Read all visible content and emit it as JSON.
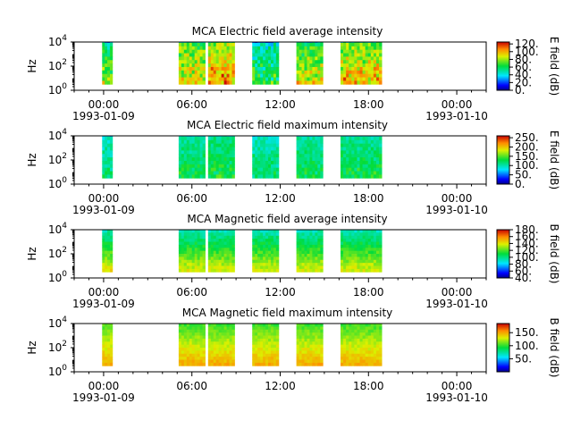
{
  "chart_data": [
    {
      "type": "heatmap",
      "title": "MCA  Electric field average intensity",
      "ylabel": "Hz",
      "colorbar_label": "E field (dB)",
      "colorbar_ticks": [
        "0.",
        "20.",
        "40.",
        "60.",
        "80.",
        "100.",
        "120."
      ],
      "colorbar_range": [
        0,
        125
      ],
      "ylim_exp": [
        0,
        4
      ],
      "yticks": [
        "0",
        "2",
        "4"
      ],
      "xticks": [
        {
          "time": "00:00",
          "date": "1993-01-09"
        },
        {
          "time": "06:00",
          "date": ""
        },
        {
          "time": "12:00",
          "date": ""
        },
        {
          "time": "18:00",
          "date": ""
        },
        {
          "time": "00:00",
          "date": "1993-01-10"
        }
      ],
      "x_range_hours": [
        -2,
        26
      ],
      "data_intervals_hours": [
        [
          -0.1,
          0.6
        ],
        [
          5.1,
          6.9
        ],
        [
          7.1,
          8.9
        ],
        [
          10.1,
          11.9
        ],
        [
          13.1,
          14.9
        ],
        [
          16.1,
          18.9
        ]
      ],
      "intensity_levels": [
        70,
        85,
        95,
        60,
        80,
        90
      ],
      "spectrum_top_exp": 4.5
    },
    {
      "type": "heatmap",
      "title": "MCA  Electric field maximum intensity",
      "ylabel": "Hz",
      "colorbar_label": "E field (dB)",
      "colorbar_ticks": [
        "0.",
        "50.",
        "100.",
        "150.",
        "200.",
        "250."
      ],
      "colorbar_range": [
        0,
        260
      ],
      "ylim_exp": [
        0,
        4
      ],
      "yticks": [
        "0",
        "2",
        "4"
      ],
      "xticks": [
        {
          "time": "00:00",
          "date": "1993-01-09"
        },
        {
          "time": "06:00",
          "date": ""
        },
        {
          "time": "12:00",
          "date": ""
        },
        {
          "time": "18:00",
          "date": ""
        },
        {
          "time": "00:00",
          "date": "1993-01-10"
        }
      ],
      "x_range_hours": [
        -2,
        26
      ],
      "data_intervals_hours": [
        [
          -0.1,
          0.6
        ],
        [
          5.1,
          6.9
        ],
        [
          7.1,
          8.9
        ],
        [
          10.1,
          11.9
        ],
        [
          13.1,
          14.9
        ],
        [
          16.1,
          18.9
        ]
      ],
      "intensity_levels": [
        110,
        120,
        125,
        110,
        118,
        122
      ],
      "spectrum_top_exp": 4.5
    },
    {
      "type": "heatmap",
      "title": "MCA  Magnetic field average intensity",
      "ylabel": "Hz",
      "colorbar_label": "B field (dB)",
      "colorbar_ticks": [
        "40.",
        "60.",
        "80.",
        "100.",
        "120.",
        "140.",
        "160.",
        "180."
      ],
      "colorbar_range": [
        40,
        180
      ],
      "ylim_exp": [
        0,
        4
      ],
      "yticks": [
        "0",
        "2",
        "4"
      ],
      "xticks": [
        {
          "time": "00:00",
          "date": "1993-01-09"
        },
        {
          "time": "06:00",
          "date": ""
        },
        {
          "time": "12:00",
          "date": ""
        },
        {
          "time": "18:00",
          "date": ""
        },
        {
          "time": "00:00",
          "date": "1993-01-10"
        }
      ],
      "x_range_hours": [
        -2,
        26
      ],
      "data_intervals_hours": [
        [
          -0.1,
          0.6
        ],
        [
          5.1,
          6.9
        ],
        [
          7.1,
          8.9
        ],
        [
          10.1,
          11.9
        ],
        [
          13.1,
          14.9
        ],
        [
          16.1,
          18.9
        ]
      ],
      "intensity_levels": [
        120,
        118,
        118,
        118,
        118,
        118
      ],
      "spectrum_top_exp": 4.0
    },
    {
      "type": "heatmap",
      "title": "MCA  Magnetic field maximum intensity",
      "ylabel": "Hz",
      "colorbar_label": "B field (dB)",
      "colorbar_ticks": [
        "50.",
        "100.",
        "150."
      ],
      "colorbar_range": [
        0,
        185
      ],
      "ylim_exp": [
        0,
        4
      ],
      "yticks": [
        "0",
        "2",
        "4"
      ],
      "xticks": [
        {
          "time": "00:00",
          "date": "1993-01-09"
        },
        {
          "time": "06:00",
          "date": ""
        },
        {
          "time": "12:00",
          "date": ""
        },
        {
          "time": "18:00",
          "date": ""
        },
        {
          "time": "00:00",
          "date": "1993-01-10"
        }
      ],
      "x_range_hours": [
        -2,
        26
      ],
      "data_intervals_hours": [
        [
          -0.1,
          0.6
        ],
        [
          5.1,
          6.9
        ],
        [
          7.1,
          8.9
        ],
        [
          10.1,
          11.9
        ],
        [
          13.1,
          14.9
        ],
        [
          16.1,
          18.9
        ]
      ],
      "intensity_levels": [
        130,
        128,
        128,
        128,
        128,
        128
      ],
      "spectrum_top_exp": 4.0
    }
  ]
}
